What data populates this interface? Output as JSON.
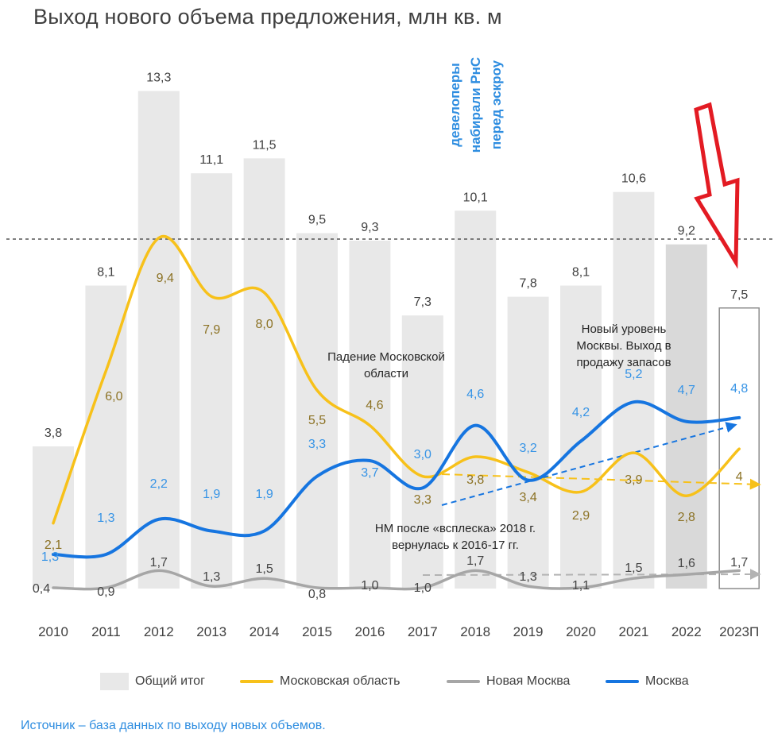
{
  "title": "Выход нового объема предложения, млн кв. м",
  "source": "Источник – база данных по выходу новых объемов.",
  "colors": {
    "total": "#e8e8e8",
    "total_last": "#d9d9d9",
    "mo": "#f7c11a",
    "mo_label": "#8c7224",
    "nm": "#a6a6a6",
    "nm_label": "#444444",
    "moscow": "#1675e0",
    "moscow_label": "#3794e6",
    "arrow": "#e31b23",
    "annotation_blue": "#2e8de0"
  },
  "chart_data": {
    "type": "bar",
    "categories": [
      "2010",
      "2011",
      "2012",
      "2013",
      "2014",
      "2015",
      "2016",
      "2017",
      "2018",
      "2019",
      "2020",
      "2021",
      "2022",
      "2023П"
    ],
    "series": [
      {
        "name": "Общий итог",
        "type": "bar",
        "values": [
          3.8,
          8.1,
          13.3,
          11.1,
          11.5,
          9.5,
          9.3,
          7.3,
          10.1,
          7.8,
          8.1,
          10.6,
          9.2,
          7.5
        ],
        "labels": [
          "3,8",
          "8,1",
          "13,3",
          "11,1",
          "11,5",
          "9,5",
          "9,3",
          "7,3",
          "10,1",
          "7,8",
          "8,1",
          "10,6",
          "9,2",
          "7,5"
        ]
      },
      {
        "name": "Московская область",
        "type": "line",
        "values": [
          2.1,
          6.0,
          9.4,
          7.9,
          8.0,
          5.5,
          4.6,
          3.3,
          3.8,
          3.4,
          2.9,
          3.9,
          2.8,
          4
        ],
        "labels": [
          "2,1",
          "6,0",
          "9,4",
          "7,9",
          "8,0",
          "5,5",
          "4,6",
          "3,3",
          "3,8",
          "3,4",
          "2,9",
          "3,9",
          "2,8",
          "4"
        ]
      },
      {
        "name": "Новая Москва",
        "type": "line",
        "values": [
          0.4,
          0.9,
          1.7,
          1.3,
          1.5,
          0.8,
          1.0,
          1.0,
          1.7,
          1.3,
          1.1,
          1.5,
          1.6,
          1.7
        ],
        "labels": [
          "0,4",
          "0,9",
          "1,7",
          "1,3",
          "1,5",
          "0,8",
          "1,0",
          "1,0",
          "1,7",
          "1,3",
          "1,1",
          "1,5",
          "1,6",
          "1,7"
        ]
      },
      {
        "name": "Москва",
        "type": "line",
        "values": [
          1.3,
          1.3,
          2.2,
          1.9,
          1.9,
          3.3,
          3.7,
          3.0,
          4.6,
          3.2,
          4.2,
          5.2,
          4.7,
          4.8
        ],
        "labels": [
          "1,3",
          "1,3",
          "2,2",
          "1,9",
          "1,9",
          "3,3",
          "3,7",
          "3,0",
          "4,6",
          "3,2",
          "4,2",
          "5,2",
          "4,7",
          "4,8"
        ]
      }
    ],
    "reference_line": 9.2,
    "annotations": [
      {
        "id": "mo-fall",
        "text": [
          "Падение Московской",
          "области"
        ]
      },
      {
        "id": "moscow-new-level",
        "text": [
          "Новый уровень",
          "Москвы. Выход в",
          "продажу запасов"
        ]
      },
      {
        "id": "nm-return",
        "text": [
          "НМ после «всплеска» 2018 г.",
          "вернулась к 2016-17 гг."
        ]
      },
      {
        "id": "developers",
        "text": [
          "девелоперы",
          "набирали РнС",
          "перед эскроу"
        ]
      }
    ],
    "legend": [
      "Общий итог",
      "Московская область",
      "Новая Москва",
      "Москва"
    ],
    "legend_position": "bottom"
  }
}
